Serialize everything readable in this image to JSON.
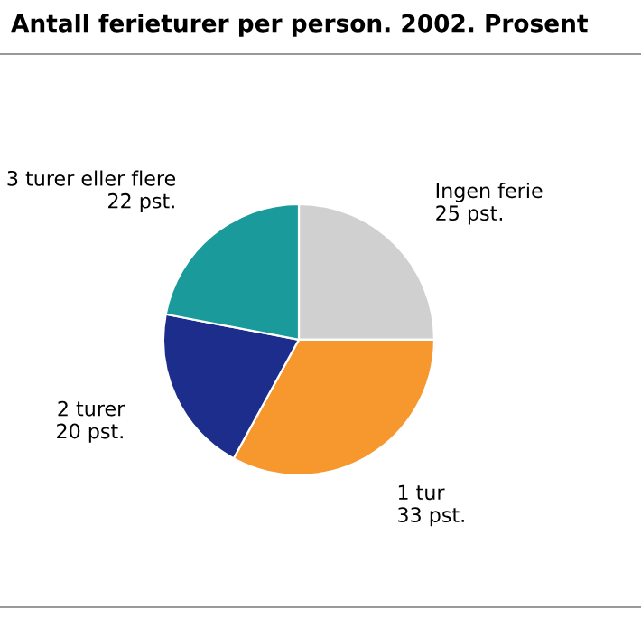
{
  "chart_data": {
    "type": "pie",
    "title": "Antall ferieturer per person. 2002. Prosent",
    "categories": [
      "Ingen ferie",
      "1 tur",
      "2 turer",
      "3 turer eller flere"
    ],
    "values": [
      25,
      33,
      20,
      22
    ],
    "colors": [
      "#d0d0d0",
      "#f7982f",
      "#1c2d8c",
      "#1a9a9a"
    ],
    "value_labels": [
      "25 pst.",
      "33 pst.",
      "20 pst.",
      "22 pst."
    ],
    "legend": false
  }
}
